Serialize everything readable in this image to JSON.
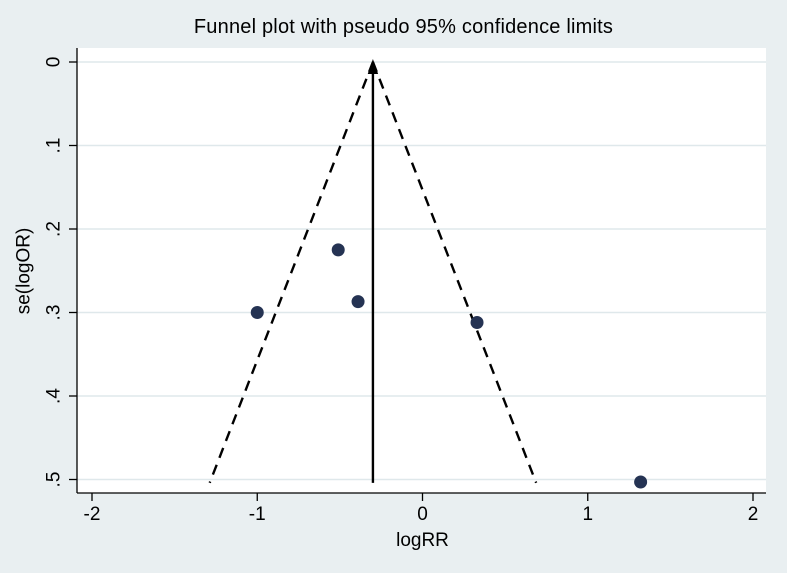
{
  "figure": {
    "title": "Funnel plot with pseudo 95% confidence limits"
  },
  "colors": {
    "background": "#e9eff1",
    "plot_background": "#ffffff",
    "grid": "#dfe8eb",
    "axis": "#000000",
    "marker": "#253353",
    "funnel_line": "#000000",
    "text": "#000000"
  },
  "chart_data": {
    "type": "scatter",
    "subtype": "funnel-plot",
    "title": "Funnel plot with pseudo 95% confidence limits",
    "xlabel": "logRR",
    "ylabel": "se(logOR)",
    "x_ticks": [
      -2,
      -1,
      0,
      1,
      2
    ],
    "x_tick_labels": [
      "-2",
      "-1",
      "0",
      "1",
      "2"
    ],
    "y_ticks": [
      0,
      0.1,
      0.2,
      0.3,
      0.4,
      0.5
    ],
    "y_tick_labels": [
      "0",
      ".1",
      ".2",
      ".3",
      ".4",
      ".5"
    ],
    "xlim": [
      -2.09,
      2.08
    ],
    "ylim": [
      -0.017,
      0.516
    ],
    "y_axis_inverted": true,
    "grid": "horizontal-only",
    "legend": "none",
    "points": [
      {
        "logRR": -1.0,
        "se": 0.3
      },
      {
        "logRR": -0.51,
        "se": 0.225
      },
      {
        "logRR": -0.39,
        "se": 0.287
      },
      {
        "logRR": 0.33,
        "se": 0.312
      },
      {
        "logRR": 1.32,
        "se": 0.503
      }
    ],
    "funnel": {
      "center_logRR": -0.3,
      "z": 1.96,
      "se_top": 0,
      "se_bottom": 0.504,
      "center_line_style": "solid-with-up-arrow",
      "limit_line_style": "dashed"
    }
  }
}
